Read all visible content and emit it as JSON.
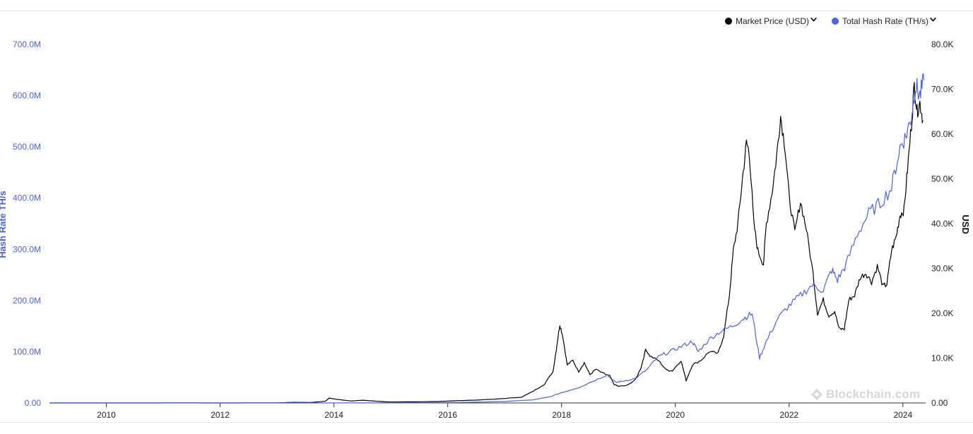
{
  "legend": {
    "price_label": "Market Price (USD)",
    "hash_label": "Total Hash Rate (TH/s)"
  },
  "colors": {
    "price": "#000000",
    "hash": "#4a62e8"
  },
  "watermark": "Blockchain.com",
  "chart_data": {
    "type": "line",
    "x_axis": {
      "ticks": [
        "2010",
        "2012",
        "2014",
        "2016",
        "2018",
        "2020",
        "2022",
        "2024"
      ],
      "range": [
        2009.0,
        2024.4
      ]
    },
    "y_left": {
      "label": "Hash Rate TH/s",
      "range": [
        0,
        700000000
      ],
      "ticks": [
        "0.00",
        "100.0M",
        "200.0M",
        "300.0M",
        "400.0M",
        "500.0M",
        "600.0M",
        "700.0M"
      ]
    },
    "y_right": {
      "label": "USD",
      "range": [
        0,
        80000
      ],
      "ticks": [
        "0.00",
        "10.0K",
        "20.0K",
        "30.0K",
        "40.0K",
        "50.0K",
        "60.0K",
        "70.0K",
        "80.0K"
      ]
    },
    "grid": false,
    "legend_position": "top-right",
    "series": [
      {
        "name": "Market Price (USD)",
        "axis": "right",
        "points": [
          [
            2009.0,
            0
          ],
          [
            2010.5,
            0.06
          ],
          [
            2011.4,
            15
          ],
          [
            2011.9,
            3
          ],
          [
            2012.5,
            10
          ],
          [
            2013.0,
            20
          ],
          [
            2013.3,
            140
          ],
          [
            2013.6,
            100
          ],
          [
            2013.85,
            400
          ],
          [
            2013.92,
            1100
          ],
          [
            2014.05,
            800
          ],
          [
            2014.3,
            450
          ],
          [
            2014.5,
            600
          ],
          [
            2014.8,
            350
          ],
          [
            2015.0,
            220
          ],
          [
            2015.5,
            260
          ],
          [
            2015.8,
            320
          ],
          [
            2016.0,
            420
          ],
          [
            2016.5,
            650
          ],
          [
            2016.9,
            900
          ],
          [
            2017.0,
            1000
          ],
          [
            2017.3,
            1300
          ],
          [
            2017.5,
            2600
          ],
          [
            2017.7,
            4200
          ],
          [
            2017.85,
            7000
          ],
          [
            2017.92,
            13000
          ],
          [
            2017.97,
            17500
          ],
          [
            2018.02,
            15000
          ],
          [
            2018.1,
            8500
          ],
          [
            2018.2,
            9500
          ],
          [
            2018.3,
            7000
          ],
          [
            2018.4,
            9000
          ],
          [
            2018.5,
            6300
          ],
          [
            2018.6,
            7500
          ],
          [
            2018.75,
            6500
          ],
          [
            2018.85,
            6000
          ],
          [
            2018.92,
            4200
          ],
          [
            2019.0,
            3700
          ],
          [
            2019.15,
            3900
          ],
          [
            2019.3,
            5200
          ],
          [
            2019.4,
            8000
          ],
          [
            2019.48,
            12000
          ],
          [
            2019.55,
            10500
          ],
          [
            2019.7,
            9500
          ],
          [
            2019.85,
            7300
          ],
          [
            2019.95,
            7200
          ],
          [
            2020.1,
            9500
          ],
          [
            2020.19,
            5000
          ],
          [
            2020.3,
            8500
          ],
          [
            2020.45,
            9500
          ],
          [
            2020.6,
            11500
          ],
          [
            2020.75,
            11000
          ],
          [
            2020.85,
            15000
          ],
          [
            2020.95,
            24000
          ],
          [
            2021.02,
            34000
          ],
          [
            2021.1,
            40000
          ],
          [
            2021.18,
            50000
          ],
          [
            2021.25,
            58000
          ],
          [
            2021.3,
            56000
          ],
          [
            2021.38,
            40000
          ],
          [
            2021.45,
            34000
          ],
          [
            2021.55,
            31000
          ],
          [
            2021.6,
            40000
          ],
          [
            2021.7,
            47000
          ],
          [
            2021.78,
            55000
          ],
          [
            2021.85,
            64000
          ],
          [
            2021.93,
            57000
          ],
          [
            2022.0,
            46000
          ],
          [
            2022.1,
            38000
          ],
          [
            2022.2,
            45000
          ],
          [
            2022.3,
            39000
          ],
          [
            2022.42,
            29000
          ],
          [
            2022.5,
            20000
          ],
          [
            2022.6,
            23000
          ],
          [
            2022.7,
            19500
          ],
          [
            2022.8,
            20500
          ],
          [
            2022.88,
            16500
          ],
          [
            2022.97,
            16500
          ],
          [
            2023.05,
            23000
          ],
          [
            2023.15,
            24000
          ],
          [
            2023.25,
            28000
          ],
          [
            2023.35,
            29000
          ],
          [
            2023.45,
            27000
          ],
          [
            2023.55,
            30500
          ],
          [
            2023.65,
            26000
          ],
          [
            2023.72,
            26500
          ],
          [
            2023.8,
            34000
          ],
          [
            2023.88,
            37000
          ],
          [
            2023.95,
            42000
          ],
          [
            2024.02,
            43000
          ],
          [
            2024.08,
            52000
          ],
          [
            2024.15,
            62000
          ],
          [
            2024.2,
            71000
          ],
          [
            2024.25,
            65000
          ],
          [
            2024.3,
            67000
          ],
          [
            2024.35,
            63000
          ]
        ]
      },
      {
        "name": "Total Hash Rate (TH/s)",
        "axis": "left",
        "points": [
          [
            2009.0,
            0
          ],
          [
            2012.0,
            0.02
          ],
          [
            2014.0,
            0.02
          ],
          [
            2015.0,
            0.4
          ],
          [
            2016.0,
            0.8
          ],
          [
            2016.5,
            1.5
          ],
          [
            2017.0,
            3
          ],
          [
            2017.5,
            6
          ],
          [
            2017.8,
            12
          ],
          [
            2018.0,
            20
          ],
          [
            2018.3,
            30
          ],
          [
            2018.6,
            45
          ],
          [
            2018.8,
            55
          ],
          [
            2018.95,
            40
          ],
          [
            2019.05,
            42
          ],
          [
            2019.3,
            48
          ],
          [
            2019.5,
            65
          ],
          [
            2019.7,
            90
          ],
          [
            2019.9,
            100
          ],
          [
            2020.1,
            110
          ],
          [
            2020.3,
            120
          ],
          [
            2020.4,
            100
          ],
          [
            2020.6,
            125
          ],
          [
            2020.8,
            140
          ],
          [
            2021.0,
            150
          ],
          [
            2021.2,
            165
          ],
          [
            2021.35,
            175
          ],
          [
            2021.48,
            88
          ],
          [
            2021.6,
            120
          ],
          [
            2021.8,
            165
          ],
          [
            2022.0,
            190
          ],
          [
            2022.2,
            210
          ],
          [
            2022.4,
            230
          ],
          [
            2022.6,
            220
          ],
          [
            2022.75,
            260
          ],
          [
            2022.85,
            240
          ],
          [
            2023.0,
            270
          ],
          [
            2023.2,
            330
          ],
          [
            2023.4,
            370
          ],
          [
            2023.6,
            390
          ],
          [
            2023.8,
            420
          ],
          [
            2023.95,
            500
          ],
          [
            2024.05,
            520
          ],
          [
            2024.15,
            560
          ],
          [
            2024.22,
            620
          ],
          [
            2024.3,
            600
          ],
          [
            2024.37,
            630
          ]
        ]
      }
    ]
  }
}
